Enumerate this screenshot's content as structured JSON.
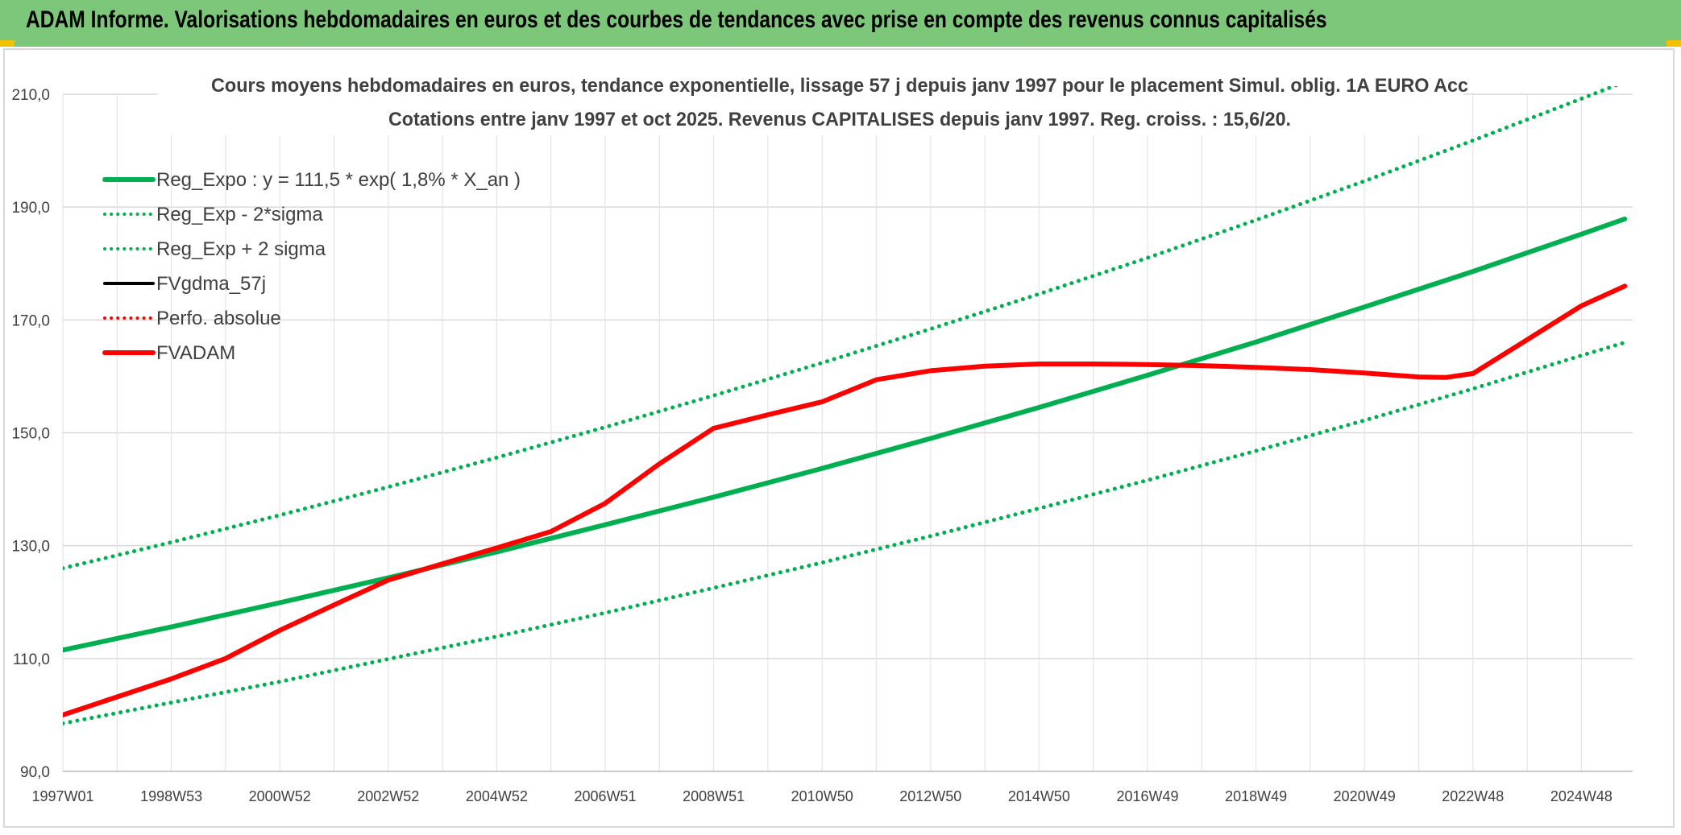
{
  "banner": {
    "title": "ADAM Informe. Valorisations hebdomadaires en euros et des courbes de tendances avec prise en compte des revenus connus capitalisés"
  },
  "colors": {
    "banner_bg": "#7dc77a",
    "regression": "#00b050",
    "adam": "#ff0000",
    "gdma": "#000000",
    "grid": "#d9d9d9",
    "text": "#404040"
  },
  "chart_data": {
    "type": "line",
    "title": "Cours moyens hebdomadaires en euros, tendance exponentielle, lissage 57 j depuis janv 1997 pour le placement Simul. oblig. 1A EURO Acc",
    "subtitle": "Cotations entre janv 1997 et oct 2025. Revenus CAPITALISES depuis janv 1997. Reg. croiss. : 15,6/20.",
    "xlabel": "",
    "ylabel": "",
    "ylim": [
      90,
      210
    ],
    "y_ticks": [
      "90,0",
      "110,0",
      "130,0",
      "150,0",
      "170,0",
      "190,0",
      "210,0"
    ],
    "x_ticks": [
      "1997W01",
      "1998W53",
      "2000W52",
      "2002W52",
      "2004W52",
      "2006W51",
      "2008W51",
      "2010W50",
      "2012W50",
      "2014W50",
      "2016W49",
      "2018W49",
      "2020W49",
      "2022W48",
      "2024W48"
    ],
    "x_range": [
      0,
      28.8
    ],
    "legend_position": "top-left",
    "series": [
      {
        "name": "Reg_Expo : y = 111,5 * exp( 1,8% *  X_an )",
        "style": "solid",
        "color": "#00b050",
        "x": [
          0,
          2,
          4,
          6,
          8,
          10,
          12,
          14,
          16,
          18,
          20,
          22,
          24,
          26,
          28,
          28.8
        ],
        "values": [
          111.5,
          115.6,
          119.9,
          124.3,
          128.9,
          133.7,
          138.6,
          143.7,
          149.0,
          154.5,
          160.2,
          166.1,
          172.3,
          178.6,
          185.2,
          187.9
        ]
      },
      {
        "name": "Reg_Exp - 2*sigma",
        "style": "dotted",
        "color": "#00b050",
        "x": [
          0,
          2,
          4,
          6,
          8,
          10,
          12,
          14,
          16,
          18,
          20,
          22,
          24,
          26,
          28,
          28.8
        ],
        "values": [
          98.5,
          102.2,
          105.9,
          109.9,
          113.9,
          118.1,
          122.5,
          127.0,
          131.7,
          136.6,
          141.6,
          146.8,
          152.2,
          157.8,
          163.7,
          166.0
        ]
      },
      {
        "name": "Reg_Exp + 2 sigma",
        "style": "dotted",
        "color": "#00b050",
        "x": [
          0,
          2,
          4,
          6,
          8,
          10,
          12,
          14,
          16,
          18,
          20,
          22,
          24,
          26,
          28,
          28.8
        ],
        "values": [
          126.0,
          130.6,
          135.4,
          140.4,
          145.6,
          151.0,
          156.6,
          162.4,
          168.4,
          174.6,
          181.0,
          187.7,
          194.6,
          201.8,
          209.2,
          212.2
        ]
      },
      {
        "name": "FVgdma_57j",
        "style": "solid",
        "color": "#000000",
        "x": [],
        "values": []
      },
      {
        "name": "Perfo. absolue",
        "style": "dotted",
        "color": "#ff0000",
        "x": [],
        "values": []
      },
      {
        "name": "FVADAM",
        "style": "solid",
        "color": "#ff0000",
        "x": [
          0,
          1,
          2,
          3,
          4,
          5,
          6,
          7,
          8,
          9,
          10,
          11,
          12,
          13,
          14,
          15,
          16,
          17,
          18,
          19,
          20,
          21,
          22,
          23,
          24,
          25,
          25.5,
          26,
          27,
          28,
          28.8
        ],
        "values": [
          100.0,
          103.2,
          106.4,
          110.0,
          115.0,
          119.5,
          123.9,
          126.8,
          129.6,
          132.5,
          137.5,
          144.5,
          150.8,
          153.2,
          155.5,
          159.4,
          161.0,
          161.8,
          162.2,
          162.2,
          162.1,
          161.9,
          161.6,
          161.2,
          160.6,
          159.9,
          159.8,
          160.5,
          166.5,
          172.5,
          176.0
        ]
      }
    ]
  }
}
